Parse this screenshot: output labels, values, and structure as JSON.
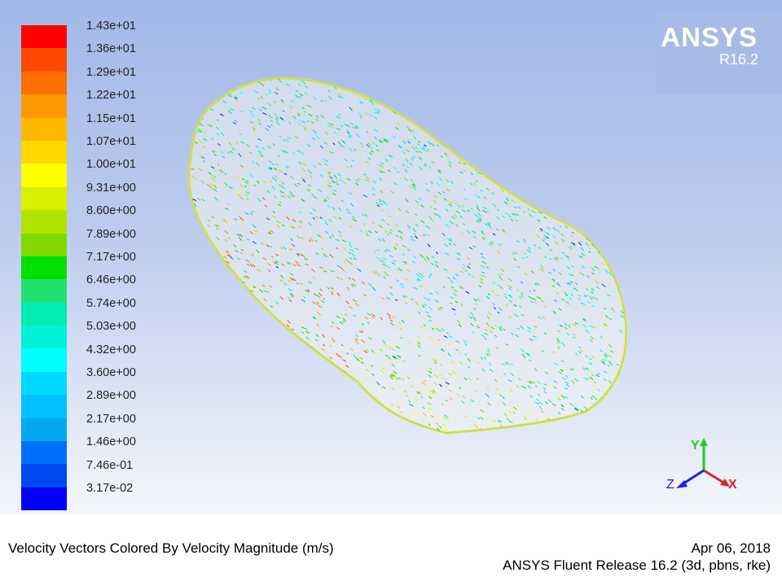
{
  "colorbar": {
    "labels": [
      "1.43e+01",
      "1.36e+01",
      "1.29e+01",
      "1.22e+01",
      "1.15e+01",
      "1.07e+01",
      "1.00e+01",
      "9.31e+00",
      "8.60e+00",
      "7.89e+00",
      "7.17e+00",
      "6.46e+00",
      "5.74e+00",
      "5.03e+00",
      "4.32e+00",
      "3.60e+00",
      "2.89e+00",
      "2.17e+00",
      "1.46e+00",
      "7.46e-01",
      "3.17e-02"
    ],
    "colors": [
      "#ff0000",
      "#ff4800",
      "#ff7000",
      "#ff9800",
      "#ffb800",
      "#ffd800",
      "#ffff00",
      "#d8f000",
      "#b0e400",
      "#80d800",
      "#00e000",
      "#20e070",
      "#00ecb0",
      "#00f0d8",
      "#00ffff",
      "#00d8ff",
      "#00c0ff",
      "#00a8f0",
      "#0070ff",
      "#0048f0",
      "#0000ff"
    ]
  },
  "logo": {
    "name": "ANSYS",
    "version": "R16.2"
  },
  "axes_triad": {
    "x_label": "X",
    "y_label": "Y",
    "z_label": "Z"
  },
  "footer": {
    "title": "Velocity Vectors Colored By Velocity Magnitude (m/s)",
    "date": "Apr 06, 2018",
    "release": "ANSYS Fluent Release 16.2 (3d, pbns, rke)"
  }
}
